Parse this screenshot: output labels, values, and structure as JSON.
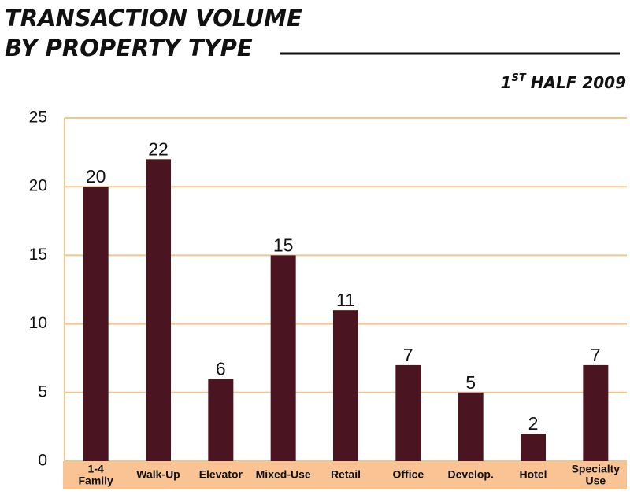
{
  "chart_data": {
    "type": "bar",
    "title": [
      "TRANSACTION VOLUME",
      "BY PROPERTY TYPE"
    ],
    "subtitle": {
      "number": "1",
      "suffix": "ST",
      "rest": "HALF 2009"
    },
    "categories": [
      [
        "1-4",
        "Family"
      ],
      "Walk-Up",
      "Elevator",
      "Mixed-Use",
      "Retail",
      "Office",
      "Develop.",
      "Hotel",
      [
        "Specialty",
        "Use"
      ]
    ],
    "values": [
      20,
      22,
      6,
      15,
      11,
      7,
      5,
      2,
      7
    ],
    "color": "#4a1520",
    "ylim": [
      0,
      25
    ],
    "yticks": [
      0,
      5,
      10,
      15,
      20,
      25
    ],
    "grid": true
  }
}
